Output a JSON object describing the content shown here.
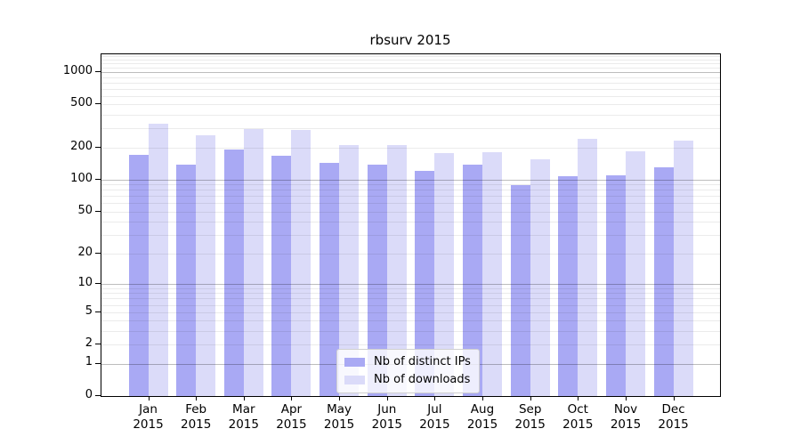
{
  "title": "rbsurv 2015",
  "chart_data": {
    "type": "bar",
    "title": "rbsurv 2015",
    "categories": [
      "Jan",
      "Feb",
      "Mar",
      "Apr",
      "May",
      "Jun",
      "Jul",
      "Aug",
      "Sep",
      "Oct",
      "Nov",
      "Dec"
    ],
    "year_label": "2015",
    "series": [
      {
        "name": "Nb of distinct IPs",
        "key": "distinct-ips",
        "color": "#a9a9f4",
        "values": [
          170,
          139,
          190,
          167,
          144,
          139,
          120,
          137,
          88,
          107,
          109,
          130
        ]
      },
      {
        "name": "Nb of downloads",
        "key": "downloads",
        "color": "#dbdbf9",
        "values": [
          330,
          258,
          295,
          290,
          210,
          208,
          178,
          180,
          156,
          238,
          185,
          232
        ]
      }
    ],
    "yscale": "log1p",
    "ylim": [
      0,
      1460
    ],
    "yticks": [
      0,
      1,
      2,
      5,
      10,
      20,
      50,
      100,
      200,
      500,
      1000
    ],
    "gridlines_major": [
      1,
      10,
      100,
      1000
    ],
    "gridlines_minor": [
      2,
      3,
      4,
      5,
      6,
      7,
      8,
      9,
      20,
      30,
      40,
      50,
      60,
      70,
      80,
      90,
      200,
      300,
      400,
      500,
      600,
      700,
      800,
      900,
      1100,
      1200,
      1300,
      1400
    ],
    "grid": true,
    "legend_position": "lower-center"
  },
  "colors": {
    "bar_distinct_ips": "#a9a9f4",
    "bar_downloads": "#dbdbf9",
    "grid_major": "#bdbdbd",
    "grid_minor": "#ebebeb",
    "axis": "#000000",
    "background": "#ffffff"
  }
}
